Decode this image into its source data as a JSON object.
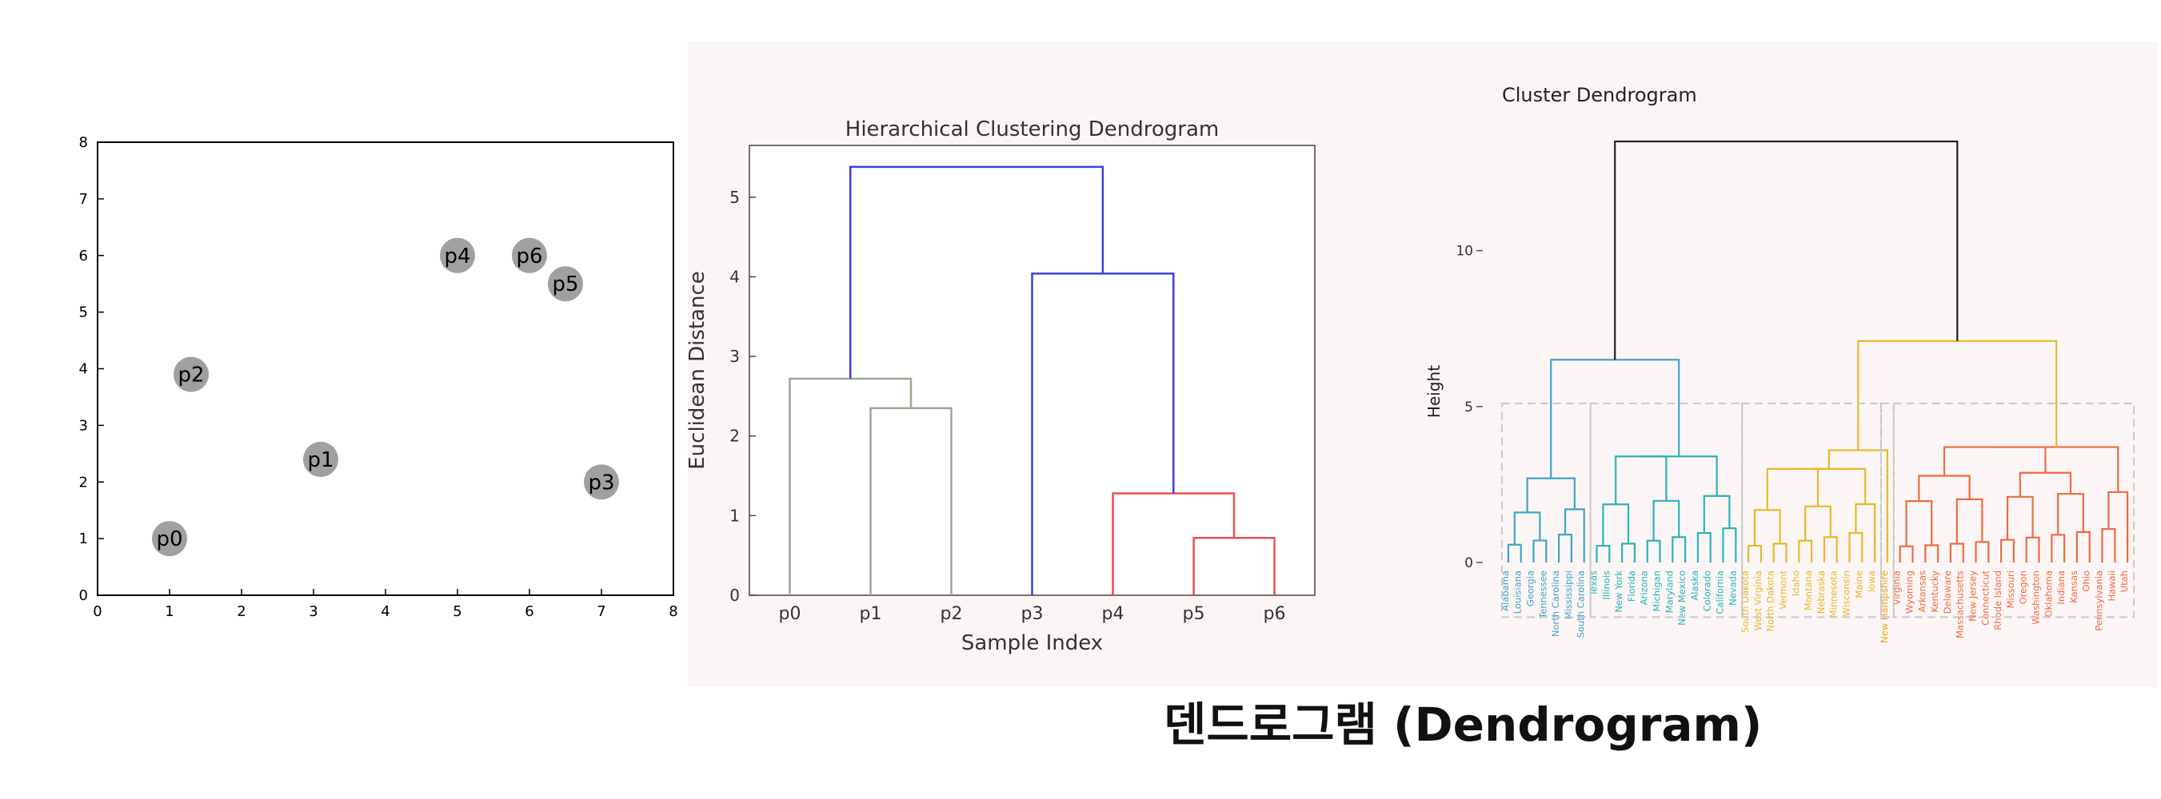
{
  "caption": "덴드로그램 (Dendrogram)",
  "chart_data": [
    {
      "type": "scatter",
      "xlim": [
        0,
        8
      ],
      "ylim": [
        0,
        8
      ],
      "xticks": [
        0,
        1,
        2,
        3,
        4,
        5,
        6,
        7,
        8
      ],
      "yticks": [
        0,
        1,
        2,
        3,
        4,
        5,
        6,
        7,
        8
      ],
      "grid": false,
      "points": [
        {
          "label": "p0",
          "x": 1.0,
          "y": 1.0
        },
        {
          "label": "p1",
          "x": 3.1,
          "y": 2.4
        },
        {
          "label": "p2",
          "x": 1.3,
          "y": 3.9
        },
        {
          "label": "p3",
          "x": 7.0,
          "y": 2.0
        },
        {
          "label": "p4",
          "x": 5.0,
          "y": 6.0
        },
        {
          "label": "p5",
          "x": 6.5,
          "y": 5.5
        },
        {
          "label": "p6",
          "x": 6.0,
          "y": 6.0
        }
      ],
      "marker_color": "#a0a0a0"
    },
    {
      "type": "dendrogram",
      "title": "Hierarchical Clustering Dendrogram",
      "xlabel": "Sample Index",
      "ylabel": "Euclidean Distance",
      "ylim": [
        0,
        5.65
      ],
      "yticks": [
        0,
        1,
        2,
        3,
        4,
        5
      ],
      "leaves": [
        "p0",
        "p1",
        "p2",
        "p3",
        "p4",
        "p5",
        "p6"
      ],
      "links": [
        {
          "left": [
            1
          ],
          "right": [
            2
          ],
          "height": 2.35,
          "color": "#9aaa94"
        },
        {
          "left": [
            0
          ],
          "right": [
            1,
            2
          ],
          "height": 2.72,
          "color": "#9aaa94"
        },
        {
          "left": [
            5
          ],
          "right": [
            6
          ],
          "height": 0.72,
          "color": "#e85050"
        },
        {
          "left": [
            4
          ],
          "right": [
            5,
            6
          ],
          "height": 1.28,
          "color": "#e85050"
        },
        {
          "left": [
            3
          ],
          "right": [
            4,
            5,
            6
          ],
          "height": 4.04,
          "color": "#4040d8"
        },
        {
          "left": [
            0,
            1,
            2
          ],
          "right": [
            3,
            4,
            5,
            6
          ],
          "height": 5.38,
          "color": "#4040d8"
        }
      ]
    },
    {
      "type": "dendrogram",
      "title": "Cluster Dendrogram",
      "ylabel": "Height",
      "yticks": [
        0,
        5,
        10
      ],
      "ylim": [
        -1.9,
        13.8
      ],
      "root_height": 13.5,
      "groups": [
        {
          "color": "#3fa3c8",
          "leaves": [
            "Alabama",
            "Louisiana",
            "Georgia",
            "Tennessee",
            "North Carolina",
            "Mississippi",
            "South Carolina"
          ]
        },
        {
          "color": "#2bb3bb",
          "leaves": [
            "Texas",
            "Illinois",
            "New York",
            "Florida",
            "Arizona",
            "Michigan",
            "Maryland",
            "New Mexico",
            "Alaska",
            "Colorado",
            "California",
            "Nevada"
          ]
        },
        {
          "color": "#e8b82a",
          "leaves": [
            "South Dakota",
            "West Virginia",
            "North Dakota",
            "Vermont",
            "Idaho",
            "Montana",
            "Nebraska",
            "Minnesota",
            "Wisconsin",
            "Maine",
            "Iowa"
          ]
        },
        {
          "color": "#e8a820",
          "leaves": [
            "New Hampshire"
          ]
        },
        {
          "color": "#f06a42",
          "leaves": [
            "Virginia",
            "Wyoming",
            "Arkansas",
            "Kentucky",
            "Delaware",
            "Massachusetts",
            "New Jersey",
            "Connecticut",
            "Rhode Island",
            "Missouri",
            "Oregon",
            "Washington",
            "Oklahoma",
            "Indiana",
            "Kansas",
            "Ohio",
            "Pennsylvania",
            "Hawaii",
            "Utah"
          ]
        }
      ],
      "cut_height": 5.1,
      "cut_line_color": "#c8c8c8"
    }
  ]
}
